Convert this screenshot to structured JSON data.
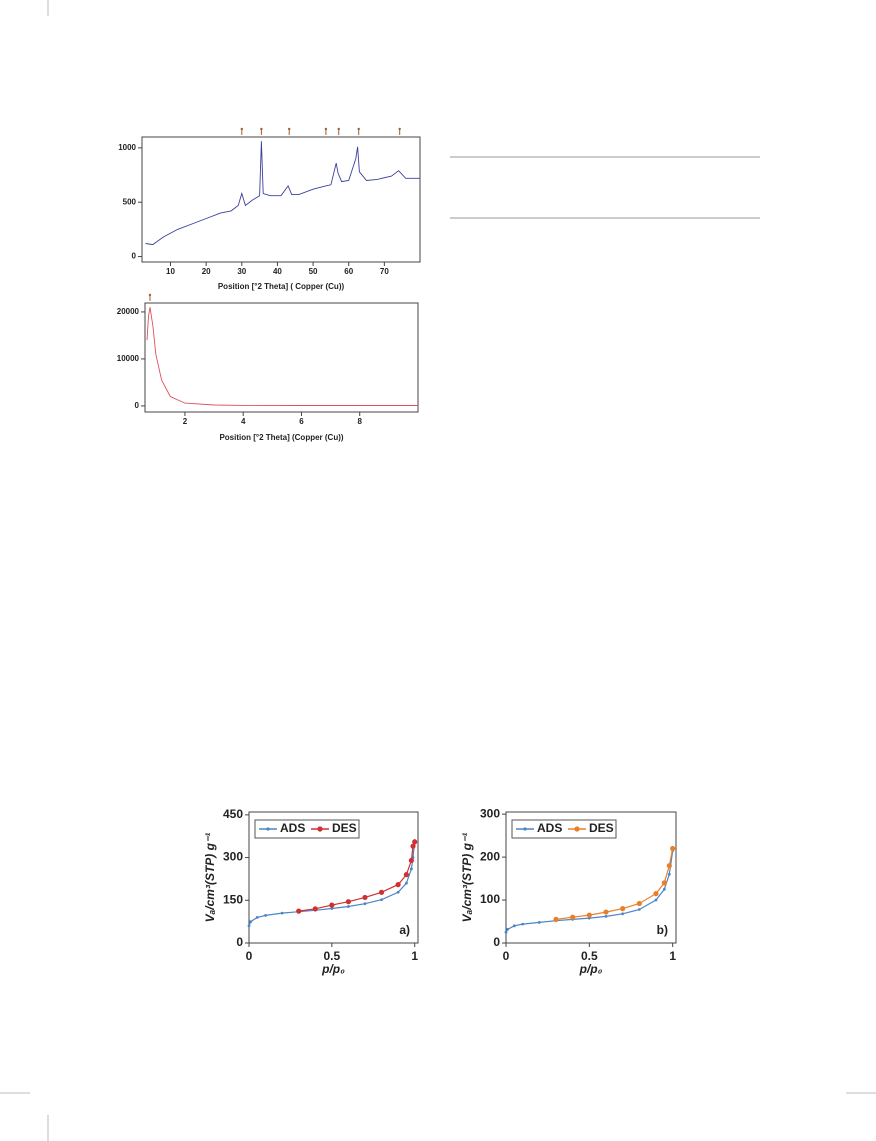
{
  "chart_data": [
    {
      "type": "line",
      "xlabel": "Position [°2 Theta] ( Copper (Cu))",
      "xlim": [
        2,
        80
      ],
      "ylim": [
        -50,
        1100
      ],
      "xticks": [
        10,
        20,
        30,
        40,
        50,
        60,
        70
      ],
      "yticks": [
        0,
        500,
        1000
      ],
      "markers_x": [
        30,
        35.5,
        43.3,
        53.6,
        57.2,
        62.8,
        74.3
      ],
      "series": [
        {
          "color": "#3b3f9e",
          "x": [
            3,
            5,
            8,
            12,
            16,
            20,
            24,
            27,
            29,
            30,
            31,
            33,
            35,
            35.5,
            36,
            38,
            41,
            43,
            44,
            46,
            50,
            53.5,
            55,
            56.5,
            57,
            58,
            60,
            62,
            62.5,
            63,
            65,
            68,
            72,
            74,
            76,
            80
          ],
          "values": [
            120,
            110,
            180,
            250,
            300,
            350,
            400,
            420,
            470,
            580,
            470,
            520,
            560,
            1060,
            580,
            560,
            560,
            650,
            570,
            570,
            620,
            650,
            660,
            860,
            770,
            690,
            700,
            900,
            1010,
            780,
            700,
            710,
            740,
            790,
            720,
            720
          ]
        }
      ]
    },
    {
      "type": "line",
      "xlabel": "Position [°2 Theta] (Copper (Cu))",
      "xlim": [
        0.63,
        10
      ],
      "ylim": [
        -1300,
        21900
      ],
      "xticks": [
        2,
        4,
        6,
        8
      ],
      "yticks": [
        0,
        10000,
        20000
      ],
      "markers_x": [
        0.8
      ],
      "series": [
        {
          "color": "#e0505a",
          "x": [
            0.7,
            0.75,
            0.8,
            0.9,
            1.0,
            1.2,
            1.5,
            2,
            3,
            4,
            6,
            8,
            10
          ],
          "values": [
            14000,
            19000,
            21000,
            17000,
            11000,
            5500,
            2000,
            600,
            200,
            100,
            80,
            80,
            80
          ]
        }
      ]
    },
    {
      "type": "isotherm",
      "xlabel": "p/p₀",
      "ylabel": "Vₐ/cm³(STP) g⁻¹",
      "annotation": "a)",
      "xlim": [
        0,
        1.02
      ],
      "ylim": [
        0,
        460
      ],
      "xticks": [
        0,
        0.5,
        1
      ],
      "yticks": [
        0,
        150,
        300,
        450
      ],
      "series": [
        {
          "name": "ADS",
          "color": "#4a86c5",
          "x": [
            0,
            0.01,
            0.05,
            0.1,
            0.2,
            0.3,
            0.4,
            0.5,
            0.6,
            0.7,
            0.8,
            0.9,
            0.95,
            0.98,
            0.99,
            1.0
          ],
          "values": [
            60,
            75,
            90,
            97,
            105,
            110,
            115,
            121,
            128,
            138,
            152,
            178,
            210,
            260,
            300,
            360
          ]
        },
        {
          "name": "DES",
          "color": "#d03030",
          "x": [
            0.3,
            0.4,
            0.5,
            0.6,
            0.7,
            0.8,
            0.9,
            0.95,
            0.98,
            0.99,
            1.0
          ],
          "values": [
            112,
            120,
            133,
            145,
            160,
            178,
            205,
            240,
            290,
            340,
            355
          ]
        }
      ]
    },
    {
      "type": "isotherm",
      "xlabel": "p/p₀",
      "ylabel": "Vₐ/cm³(STP) g⁻¹",
      "annotation": "b)",
      "xlim": [
        0,
        1.02
      ],
      "ylim": [
        0,
        305
      ],
      "xticks": [
        0,
        0.5,
        1
      ],
      "yticks": [
        0,
        100,
        200,
        300
      ],
      "series": [
        {
          "name": "ADS",
          "color": "#4a86c5",
          "x": [
            0,
            0.01,
            0.05,
            0.1,
            0.2,
            0.3,
            0.4,
            0.5,
            0.6,
            0.7,
            0.8,
            0.9,
            0.95,
            0.98,
            1.0
          ],
          "values": [
            25,
            32,
            40,
            44,
            48,
            52,
            55,
            58,
            62,
            68,
            78,
            100,
            125,
            160,
            215
          ]
        },
        {
          "name": "DES",
          "color": "#e8802a",
          "x": [
            0.3,
            0.4,
            0.5,
            0.6,
            0.7,
            0.8,
            0.9,
            0.95,
            0.98,
            1.0
          ],
          "values": [
            55,
            60,
            65,
            72,
            80,
            92,
            115,
            140,
            180,
            220
          ]
        }
      ]
    }
  ]
}
